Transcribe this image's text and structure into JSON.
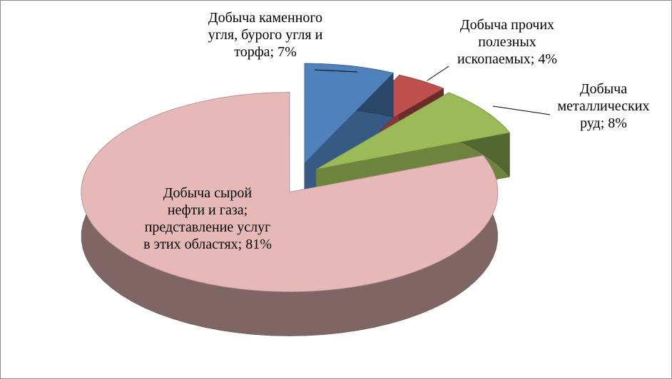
{
  "chart_data": {
    "type": "pie3d",
    "values": [
      7,
      4,
      8,
      81
    ],
    "value_labels": [
      "Добыча каменного угля, бурого угля и торфа; 7%",
      "Добыча прочих полезных ископаемых; 4%",
      "Добыча металлических руд; 8%",
      "Добыча сырой нефти и газа; представление услуг в этих областях; 81%"
    ],
    "colors": [
      "#4f81bd",
      "#c0504d",
      "#9bbb59",
      "#e6b9b8"
    ]
  }
}
